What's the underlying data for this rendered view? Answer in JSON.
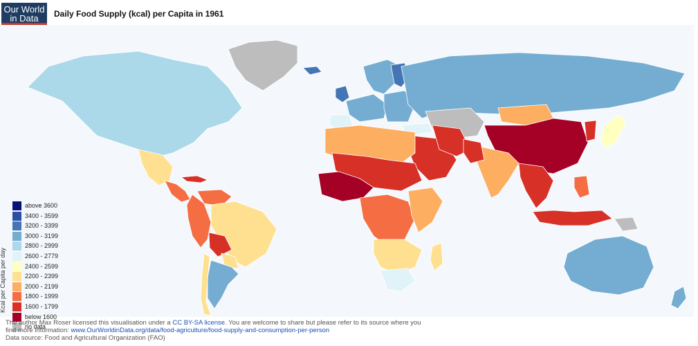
{
  "header": {
    "logo_line1": "Our World",
    "logo_line2": "in Data",
    "title": "Daily Food Supply (kcal) per Capita in 1961"
  },
  "legend": {
    "axis_label": "Kcal per Capita per day",
    "items": [
      {
        "label": "above 3600",
        "color": "#08107a"
      },
      {
        "label": "3400 - 3599",
        "color": "#2c4fa1"
      },
      {
        "label": "3200 - 3399",
        "color": "#4575b4"
      },
      {
        "label": "3000 - 3199",
        "color": "#74add1"
      },
      {
        "label": "2800 - 2999",
        "color": "#abd9e9"
      },
      {
        "label": "2600 - 2779",
        "color": "#e0f3f8"
      },
      {
        "label": "2400 - 2599",
        "color": "#ffffbf"
      },
      {
        "label": "2200 - 2399",
        "color": "#fee090"
      },
      {
        "label": "2000 - 2199",
        "color": "#fdae61"
      },
      {
        "label": "1800 - 1999",
        "color": "#f46d43"
      },
      {
        "label": "1600 - 1799",
        "color": "#d73027"
      },
      {
        "label": "below 1600",
        "color": "#a50026"
      },
      {
        "label": "no data",
        "color": "#bdbdbd"
      }
    ]
  },
  "footer": {
    "line1_prefix": "The author Max Roser licensed this visualisation under a ",
    "license_link": "CC BY-SA license",
    "line1_suffix": ". You are welcome to share but please refer to its source where you",
    "line2_prefix": "find more information: ",
    "source_link": "www.OurWorldinData.org/data/food-agriculture/food-supply-and-consumption-per-person",
    "line3": "Data source: Food and Agricultural Organization (FAO)"
  },
  "map": {
    "ocean_color": "#f4f8fc",
    "regions": [
      {
        "name": "North America",
        "color": "#abd9e9"
      },
      {
        "name": "Greenland",
        "color": "#bdbdbd"
      },
      {
        "name": "Mexico",
        "color": "#fee090"
      },
      {
        "name": "Central America",
        "color": "#f46d43"
      },
      {
        "name": "Cuba",
        "color": "#d73027"
      },
      {
        "name": "Venezuela",
        "color": "#f46d43"
      },
      {
        "name": "Colombia/Ecuador/Peru",
        "color": "#f46d43"
      },
      {
        "name": "Brazil",
        "color": "#fee090"
      },
      {
        "name": "Bolivia",
        "color": "#d73027"
      },
      {
        "name": "Paraguay",
        "color": "#fee090"
      },
      {
        "name": "Argentina",
        "color": "#74add1"
      },
      {
        "name": "Chile",
        "color": "#fee090"
      },
      {
        "name": "Iceland",
        "color": "#4575b4"
      },
      {
        "name": "Scandinavia",
        "color": "#74add1"
      },
      {
        "name": "Finland",
        "color": "#4575b4"
      },
      {
        "name": "UK",
        "color": "#4575b4"
      },
      {
        "name": "Western Europe",
        "color": "#74add1"
      },
      {
        "name": "Iberia",
        "color": "#e0f3f8"
      },
      {
        "name": "Eastern Europe",
        "color": "#74add1"
      },
      {
        "name": "USSR",
        "color": "#74add1"
      },
      {
        "name": "Central Asia",
        "color": "#bdbdbd"
      },
      {
        "name": "Turkey",
        "color": "#e0f3f8"
      },
      {
        "name": "Mongolia",
        "color": "#fdae61"
      },
      {
        "name": "China",
        "color": "#a50026"
      },
      {
        "name": "Korea",
        "color": "#d73027"
      },
      {
        "name": "Japan",
        "color": "#ffffbf"
      },
      {
        "name": "Middle East",
        "color": "#d73027"
      },
      {
        "name": "Iran",
        "color": "#d73027"
      },
      {
        "name": "India",
        "color": "#fdae61"
      },
      {
        "name": "Pakistan",
        "color": "#d73027"
      },
      {
        "name": "Southeast Asia",
        "color": "#d73027"
      },
      {
        "name": "Indonesia",
        "color": "#d73027"
      },
      {
        "name": "Philippines",
        "color": "#f46d43"
      },
      {
        "name": "North Africa",
        "color": "#fdae61"
      },
      {
        "name": "Sahel",
        "color": "#d73027"
      },
      {
        "name": "West Africa",
        "color": "#a50026"
      },
      {
        "name": "Central Africa",
        "color": "#f46d43"
      },
      {
        "name": "East Africa",
        "color": "#fdae61"
      },
      {
        "name": "Southern Africa",
        "color": "#fee090"
      },
      {
        "name": "South Africa",
        "color": "#e0f3f8"
      },
      {
        "name": "Madagascar",
        "color": "#fee090"
      },
      {
        "name": "Australia",
        "color": "#74add1"
      },
      {
        "name": "New Zealand",
        "color": "#74add1"
      },
      {
        "name": "Papua New Guinea",
        "color": "#bdbdbd"
      }
    ]
  }
}
